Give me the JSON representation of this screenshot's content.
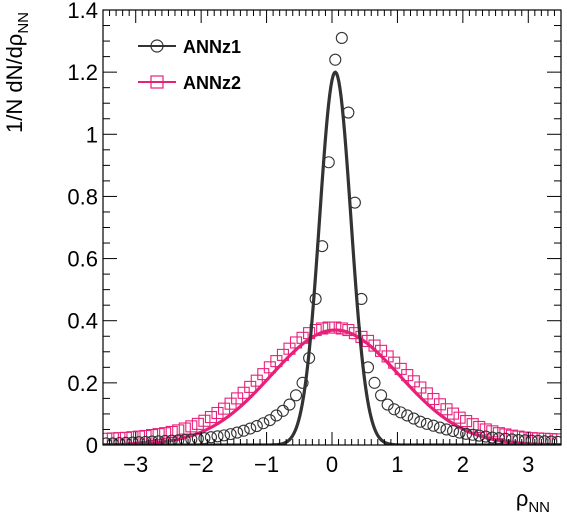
{
  "chart_data": {
    "type": "line",
    "xlabel": "ρ",
    "xlabel_sub": "NN",
    "ylabel": "1/N dN/dρ",
    "ylabel_sub": "NN",
    "xlim": [
      -3.5,
      3.5
    ],
    "ylim": [
      0,
      1.4
    ],
    "xticks": [
      -3,
      -2,
      -1,
      0,
      1,
      2,
      3
    ],
    "xtick_labels": [
      "−3",
      "−2",
      "−1",
      "0",
      "1",
      "2",
      "3"
    ],
    "yticks": [
      0,
      0.2,
      0.4,
      0.6,
      0.8,
      1,
      1.2,
      1.4
    ],
    "ytick_labels": [
      "0",
      "0.2",
      "0.4",
      "0.6",
      "0.8",
      "1",
      "1.2",
      "1.4"
    ],
    "grid": false,
    "legend_position": "top-left",
    "series": [
      {
        "name": "ANNz1",
        "color": "#333333",
        "marker": "open-circle",
        "points": {
          "x": [
            -3.45,
            -3.35,
            -3.25,
            -3.15,
            -3.05,
            -2.95,
            -2.85,
            -2.75,
            -2.65,
            -2.55,
            -2.45,
            -2.35,
            -2.25,
            -2.15,
            -2.05,
            -1.95,
            -1.85,
            -1.75,
            -1.65,
            -1.55,
            -1.45,
            -1.35,
            -1.25,
            -1.15,
            -1.05,
            -0.95,
            -0.85,
            -0.75,
            -0.65,
            -0.55,
            -0.45,
            -0.35,
            -0.25,
            -0.15,
            -0.05,
            0.05,
            0.15,
            0.25,
            0.35,
            0.45,
            0.55,
            0.65,
            0.75,
            0.85,
            0.95,
            1.05,
            1.15,
            1.25,
            1.35,
            1.45,
            1.55,
            1.65,
            1.75,
            1.85,
            1.95,
            2.05,
            2.15,
            2.25,
            2.35,
            2.45,
            2.55,
            2.65,
            2.75,
            2.85,
            2.95,
            3.05,
            3.15,
            3.25,
            3.35,
            3.45
          ],
          "y": [
            0.005,
            0.005,
            0.006,
            0.007,
            0.008,
            0.009,
            0.01,
            0.011,
            0.012,
            0.013,
            0.014,
            0.015,
            0.016,
            0.018,
            0.02,
            0.022,
            0.025,
            0.028,
            0.031,
            0.035,
            0.04,
            0.046,
            0.053,
            0.061,
            0.07,
            0.08,
            0.095,
            0.11,
            0.13,
            0.16,
            0.2,
            0.28,
            0.47,
            0.64,
            0.91,
            1.24,
            1.31,
            1.07,
            0.78,
            0.47,
            0.25,
            0.2,
            0.16,
            0.13,
            0.115,
            0.105,
            0.095,
            0.085,
            0.075,
            0.068,
            0.062,
            0.056,
            0.05,
            0.045,
            0.04,
            0.036,
            0.033,
            0.03,
            0.027,
            0.024,
            0.022,
            0.02,
            0.018,
            0.016,
            0.015,
            0.014,
            0.013,
            0.012,
            0.011,
            0.01
          ]
        },
        "curve": {
          "shape": "gaussian",
          "amplitude": 1.2,
          "mean": 0.05,
          "sigma": 0.24
        }
      },
      {
        "name": "ANNz2",
        "color": "#e8207a",
        "marker": "open-square",
        "points": {
          "x": [
            -3.45,
            -3.35,
            -3.25,
            -3.15,
            -3.05,
            -2.95,
            -2.85,
            -2.75,
            -2.65,
            -2.55,
            -2.45,
            -2.35,
            -2.25,
            -2.15,
            -2.05,
            -1.95,
            -1.85,
            -1.75,
            -1.65,
            -1.55,
            -1.45,
            -1.35,
            -1.25,
            -1.15,
            -1.05,
            -0.95,
            -0.85,
            -0.75,
            -0.65,
            -0.55,
            -0.45,
            -0.35,
            -0.25,
            -0.15,
            -0.05,
            0.05,
            0.15,
            0.25,
            0.35,
            0.45,
            0.55,
            0.65,
            0.75,
            0.85,
            0.95,
            1.05,
            1.15,
            1.25,
            1.35,
            1.45,
            1.55,
            1.65,
            1.75,
            1.85,
            1.95,
            2.05,
            2.15,
            2.25,
            2.35,
            2.45,
            2.55,
            2.65,
            2.75,
            2.85,
            2.95,
            3.05,
            3.15,
            3.25,
            3.35,
            3.45
          ],
          "y": [
            0.02,
            0.021,
            0.022,
            0.023,
            0.025,
            0.027,
            0.029,
            0.032,
            0.035,
            0.038,
            0.042,
            0.047,
            0.053,
            0.06,
            0.068,
            0.078,
            0.09,
            0.103,
            0.117,
            0.133,
            0.15,
            0.168,
            0.187,
            0.207,
            0.228,
            0.25,
            0.27,
            0.29,
            0.31,
            0.33,
            0.345,
            0.36,
            0.37,
            0.375,
            0.378,
            0.378,
            0.375,
            0.37,
            0.36,
            0.348,
            0.335,
            0.32,
            0.303,
            0.285,
            0.265,
            0.245,
            0.225,
            0.205,
            0.185,
            0.166,
            0.148,
            0.131,
            0.115,
            0.101,
            0.088,
            0.077,
            0.067,
            0.058,
            0.05,
            0.044,
            0.038,
            0.034,
            0.03,
            0.027,
            0.024,
            0.022,
            0.021,
            0.02,
            0.019,
            0.018
          ]
        },
        "curve": {
          "shape": "gaussian",
          "amplitude": 0.37,
          "mean": 0.05,
          "sigma": 0.98
        }
      }
    ]
  }
}
